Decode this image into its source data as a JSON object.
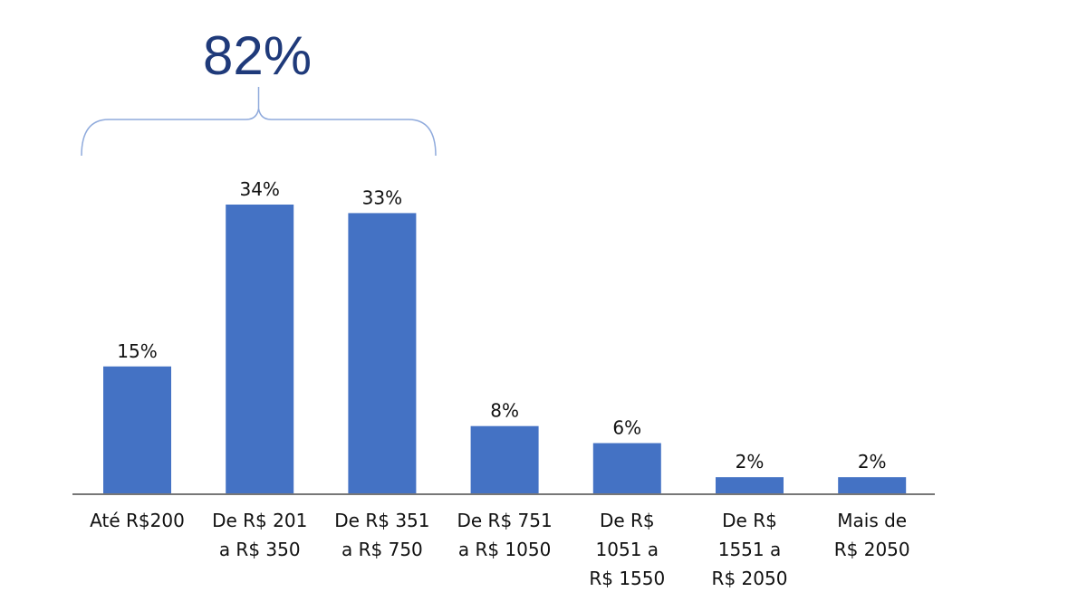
{
  "chart_data": {
    "type": "bar",
    "categories": [
      [
        "Até R$200"
      ],
      [
        "De R$ 201",
        "a R$ 350"
      ],
      [
        "De R$ 351",
        "a R$ 750"
      ],
      [
        "De R$ 751",
        "a R$ 1050"
      ],
      [
        "De R$",
        "1051 a",
        "R$ 1550"
      ],
      [
        "De R$",
        "1551 a",
        "R$ 2050"
      ],
      [
        "Mais de",
        "R$ 2050"
      ]
    ],
    "values": [
      15,
      34,
      33,
      8,
      6,
      2,
      2
    ],
    "data_labels": [
      "15%",
      "34%",
      "33%",
      "8%",
      "6%",
      "2%",
      "2%"
    ],
    "ylim": [
      0,
      34
    ],
    "grid": false,
    "legend": "none",
    "bar_color": "#4472c4",
    "axis_color": "#777777",
    "annotation": {
      "text": "82%",
      "spans_categories": [
        0,
        2
      ],
      "color": "#1f3a7a",
      "brace_color": "#8faadc"
    }
  }
}
